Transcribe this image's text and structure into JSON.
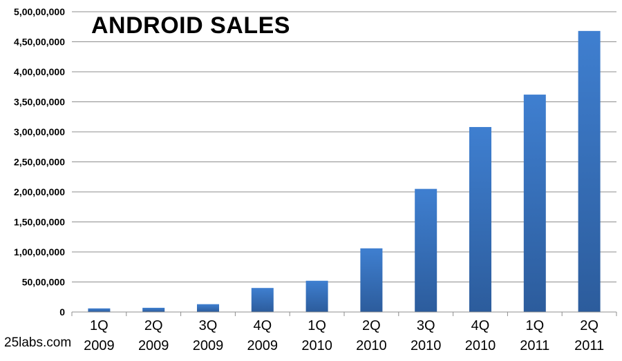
{
  "chart_data": {
    "type": "bar",
    "title": "ANDROID SALES",
    "xlabel": "",
    "ylabel": "",
    "categories": [
      [
        "1Q",
        "2009"
      ],
      [
        "2Q",
        "2009"
      ],
      [
        "3Q",
        "2009"
      ],
      [
        "4Q",
        "2009"
      ],
      [
        "1Q",
        "2010"
      ],
      [
        "2Q",
        "2010"
      ],
      [
        "3Q",
        "2010"
      ],
      [
        "4Q",
        "2010"
      ],
      [
        "1Q",
        "2011"
      ],
      [
        "2Q",
        "2011"
      ]
    ],
    "values": [
      600000,
      700000,
      1300000,
      4000000,
      5200000,
      10600000,
      20500000,
      30800000,
      36200000,
      46800000
    ],
    "ylim": [
      0,
      50000000
    ],
    "yticks": [
      0,
      5000000,
      10000000,
      15000000,
      20000000,
      25000000,
      30000000,
      35000000,
      40000000,
      45000000,
      50000000
    ],
    "ytick_labels": [
      "0",
      "50,00,000",
      "1,00,00,000",
      "1,50,00,000",
      "2,00,00,000",
      "2,50,00,000",
      "3,00,00,000",
      "3,50,00,000",
      "4,00,00,000",
      "4,50,00,000",
      "5,00,00,000"
    ],
    "grid": true,
    "legend": "none",
    "bar_color_top": "#3f7fd0",
    "bar_color_bottom": "#2c5c9c"
  },
  "watermark": "25labs.com"
}
